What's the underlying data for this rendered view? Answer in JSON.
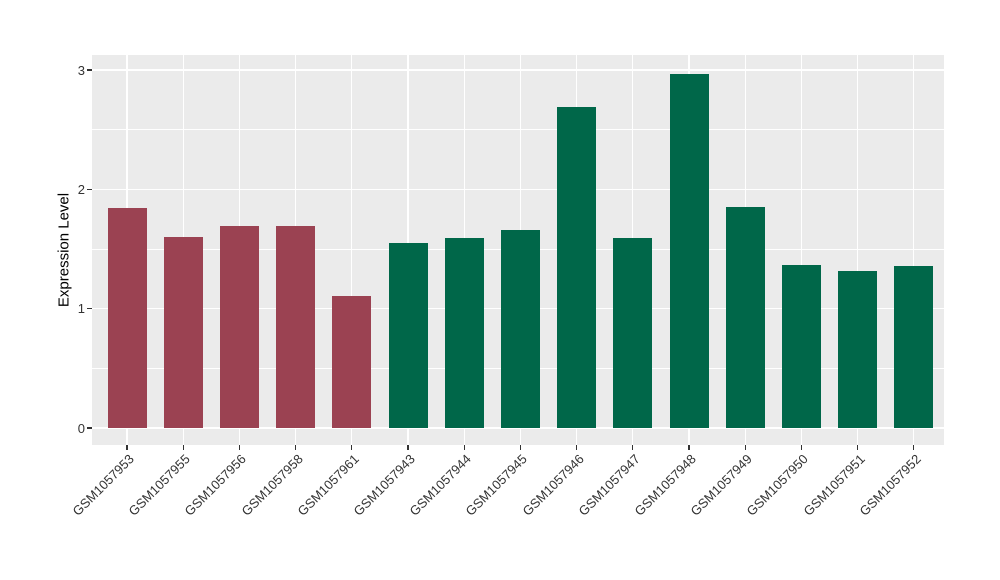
{
  "chart_data": {
    "type": "bar",
    "title": "",
    "xlabel": "",
    "ylabel": "Expression Level",
    "categories": [
      "GSM1057953",
      "GSM1057955",
      "GSM1057956",
      "GSM1057958",
      "GSM1057961",
      "GSM1057943",
      "GSM1057944",
      "GSM1057945",
      "GSM1057946",
      "GSM1057947",
      "GSM1057948",
      "GSM1057949",
      "GSM1057950",
      "GSM1057951",
      "GSM1057952"
    ],
    "values": [
      1.84,
      1.6,
      1.69,
      1.69,
      1.11,
      1.55,
      1.59,
      1.66,
      2.69,
      1.59,
      2.97,
      1.85,
      1.37,
      1.32,
      1.36
    ],
    "groups": [
      "maroon",
      "maroon",
      "maroon",
      "maroon",
      "maroon",
      "green",
      "green",
      "green",
      "green",
      "green",
      "green",
      "green",
      "green",
      "green",
      "green"
    ],
    "group_colors": {
      "maroon": "#9B4252",
      "green": "#006749"
    },
    "yticks": [
      0,
      1,
      2,
      3
    ],
    "yticks_minor": [
      0.5,
      1.5,
      2.5
    ],
    "ylim": [
      0,
      3.27
    ],
    "grid": "on",
    "legend": "none",
    "colors": {
      "panel_background": "#EBEBEB",
      "gridline_major": "#FFFFFF",
      "gridline_minor": "#FFFFFF",
      "axis_text": "#333333",
      "tick_mark": "#333333"
    }
  }
}
